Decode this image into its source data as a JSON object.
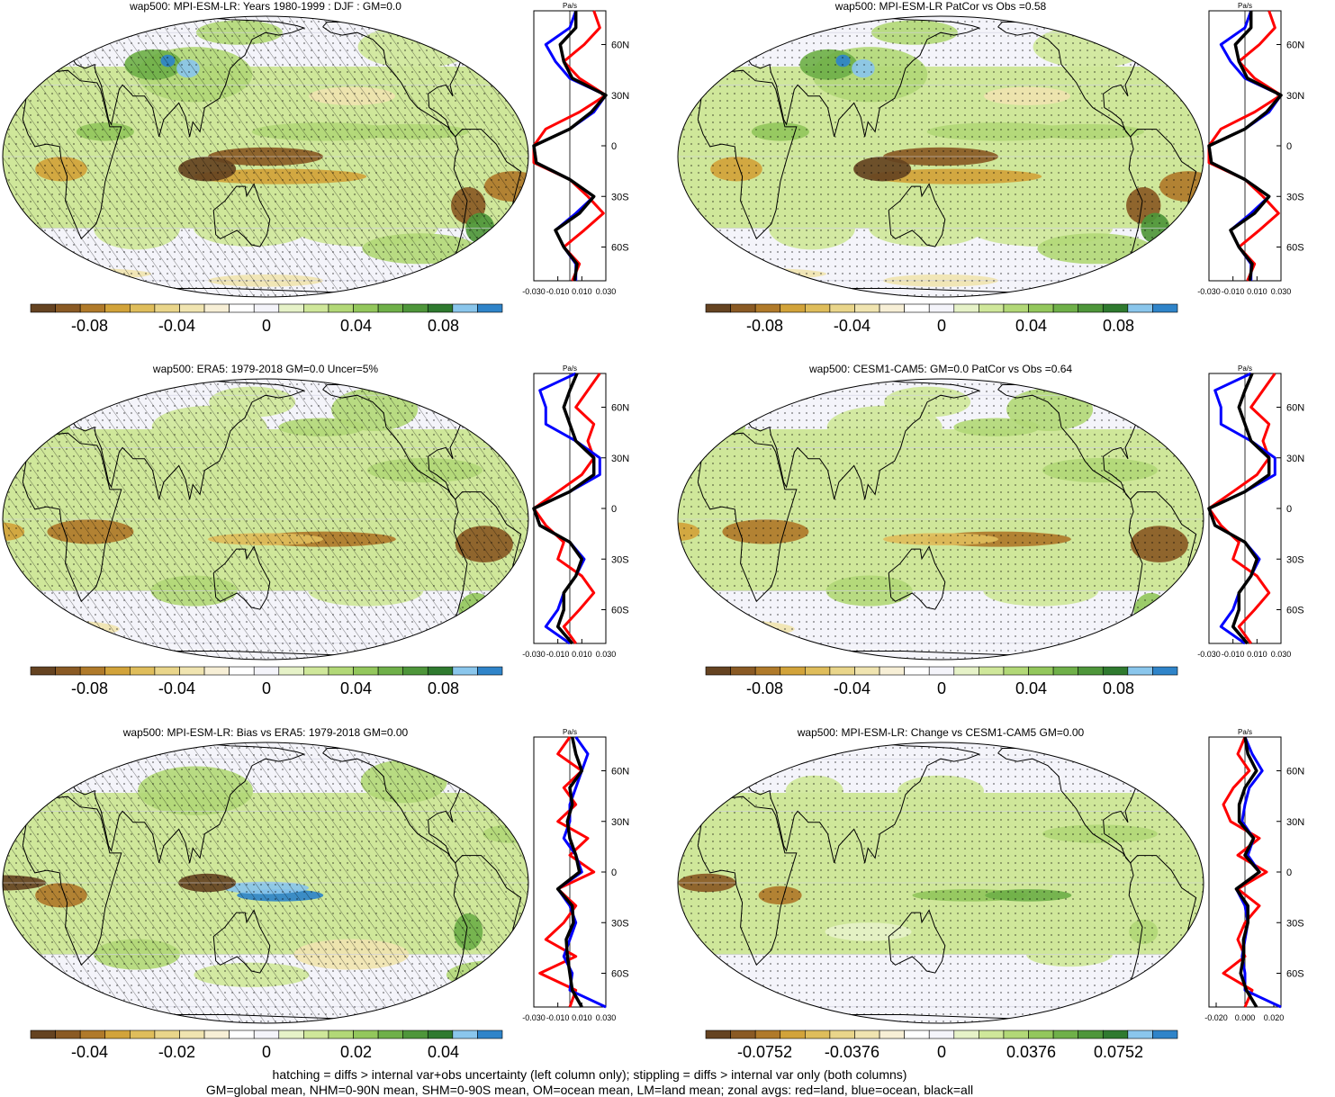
{
  "colors": {
    "scale": [
      "#654321",
      "#8a5a24",
      "#b07a2a",
      "#d2a33a",
      "#dfbd5b",
      "#e9d58a",
      "#f0e4b0",
      "#f7efd6",
      "#ffffff",
      "#f4f4fa",
      "#e6f2c8",
      "#cfe79a",
      "#b2d877",
      "#93c75c",
      "#6fb049",
      "#4e963a",
      "#2f7a2f",
      "#8ac6ec",
      "#2f84c9"
    ],
    "land": "#ff0000",
    "ocean": "#0000ff",
    "all": "#000000"
  },
  "panels": [
    {
      "id": "p1",
      "title": "wap500: MPI-ESM-LR: Years 1980-1999 : DJF : GM=0.0",
      "hatched": true,
      "colorbar_labels": [
        "-0.08",
        "-0.04",
        "0",
        "0.04",
        "0.08"
      ],
      "profile_unit": "Pa/s",
      "profile_xticks": [
        "-0.030",
        "-0.010",
        "0.010",
        "0.030"
      ],
      "profile_yticks": [
        "60N",
        "30N",
        "0",
        "30S",
        "60S"
      ]
    },
    {
      "id": "p2",
      "title": "wap500: MPI-ESM-LR PatCor vs Obs =0.58",
      "hatched": false,
      "colorbar_labels": [
        "-0.08",
        "-0.04",
        "0",
        "0.04",
        "0.08"
      ],
      "profile_unit": "Pa/s",
      "profile_xticks": [
        "-0.030",
        "-0.010",
        "0.010",
        "0.030"
      ],
      "profile_yticks": [
        "60N",
        "30N",
        "0",
        "30S",
        "60S"
      ]
    },
    {
      "id": "p3",
      "title": "wap500: ERA5: 1979-2018 GM=0.0 Uncer=5%",
      "hatched": true,
      "colorbar_labels": [
        "-0.08",
        "-0.04",
        "0",
        "0.04",
        "0.08"
      ],
      "profile_unit": "Pa/s",
      "profile_xticks": [
        "-0.030",
        "-0.010",
        "0.010",
        "0.030"
      ],
      "profile_yticks": [
        "60N",
        "30N",
        "0",
        "30S",
        "60S"
      ]
    },
    {
      "id": "p4",
      "title": "wap500: CESM1-CAM5: GM=0.0 PatCor vs Obs =0.64",
      "hatched": false,
      "colorbar_labels": [
        "-0.08",
        "-0.04",
        "0",
        "0.04",
        "0.08"
      ],
      "profile_unit": "Pa/s",
      "profile_xticks": [
        "-0.030",
        "-0.010",
        "0.010",
        "0.030"
      ],
      "profile_yticks": [
        "60N",
        "30N",
        "0",
        "30S",
        "60S"
      ]
    },
    {
      "id": "p5",
      "title": "wap500: MPI-ESM-LR: Bias vs ERA5: 1979-2018 GM=0.00",
      "hatched": true,
      "colorbar_labels": [
        "-0.04",
        "-0.02",
        "0",
        "0.02",
        "0.04"
      ],
      "profile_unit": "Pa/s",
      "profile_xticks": [
        "-0.030",
        "-0.010",
        "0.010",
        "0.030"
      ],
      "profile_yticks": [
        "60N",
        "30N",
        "0",
        "30S",
        "60S"
      ]
    },
    {
      "id": "p6",
      "title": "wap500: MPI-ESM-LR: Change vs CESM1-CAM5 GM=0.00",
      "hatched": false,
      "colorbar_labels": [
        "-0.0752",
        "-0.0376",
        "0",
        "0.0376",
        "0.0752"
      ],
      "profile_unit": "Pa/s",
      "profile_xticks": [
        "-0.020",
        "0.000",
        "0.020"
      ],
      "profile_yticks": [
        "60N",
        "30N",
        "0",
        "30S",
        "60S"
      ]
    }
  ],
  "footer": {
    "line1": "hatching = diffs > internal var+obs uncertainty (left column only); stippling = diffs > internal var only (both columns)",
    "line2": "GM=global mean, NHM=0-90N mean, SHM=0-90S mean, OM=ocean mean, LM=land mean; zonal avgs: red=land, blue=ocean, black=all"
  },
  "chart_data": [
    {
      "type": "heatmap",
      "title": "wap500: MPI-ESM-LR: Years 1980-1999 : DJF : GM=0.0",
      "colorbar_ticks": [
        -0.08,
        -0.04,
        0,
        0.04,
        0.08
      ],
      "zonal_profile": {
        "unit": "Pa/s",
        "xlim": [
          -0.03,
          0.03
        ],
        "latitudes": [
          80,
          70,
          60,
          50,
          40,
          30,
          20,
          10,
          0,
          -10,
          -20,
          -30,
          -40,
          -50,
          -60,
          -70,
          -80
        ],
        "series": [
          {
            "name": "land",
            "values": [
              0.02,
              0.025,
              0.012,
              -0.005,
              0.008,
              0.03,
              0.008,
              -0.02,
              -0.03,
              -0.03,
              0.0,
              0.015,
              0.028,
              0.012,
              -0.005,
              0.008,
              0.002
            ]
          },
          {
            "name": "ocean",
            "values": [
              0.005,
              0.0,
              -0.02,
              -0.012,
              0.0,
              0.03,
              0.02,
              0.0,
              -0.03,
              -0.028,
              0.0,
              0.02,
              0.005,
              -0.012,
              -0.005,
              0.005,
              0.005
            ]
          },
          {
            "name": "all",
            "values": [
              0.005,
              0.005,
              -0.008,
              -0.005,
              0.002,
              0.03,
              0.018,
              0.0,
              -0.03,
              -0.028,
              0.0,
              0.02,
              0.008,
              -0.012,
              -0.005,
              0.006,
              0.004
            ]
          }
        ]
      }
    },
    {
      "type": "heatmap",
      "title": "wap500: MPI-ESM-LR PatCor vs Obs =0.58",
      "colorbar_ticks": [
        -0.08,
        -0.04,
        0,
        0.04,
        0.08
      ],
      "zonal_profile": {
        "unit": "Pa/s",
        "xlim": [
          -0.03,
          0.03
        ],
        "latitudes": [
          80,
          70,
          60,
          50,
          40,
          30,
          20,
          10,
          0,
          -10,
          -20,
          -30,
          -40,
          -50,
          -60,
          -70,
          -80
        ],
        "series": [
          {
            "name": "land",
            "values": [
              0.02,
              0.025,
              0.012,
              -0.005,
              0.008,
              0.03,
              0.008,
              -0.02,
              -0.03,
              -0.03,
              0.0,
              0.015,
              0.028,
              0.012,
              -0.005,
              0.008,
              0.002
            ]
          },
          {
            "name": "ocean",
            "values": [
              0.005,
              0.0,
              -0.02,
              -0.012,
              0.0,
              0.03,
              0.02,
              0.0,
              -0.03,
              -0.028,
              0.0,
              0.02,
              0.005,
              -0.012,
              -0.005,
              0.005,
              0.005
            ]
          },
          {
            "name": "all",
            "values": [
              0.005,
              0.005,
              -0.008,
              -0.005,
              0.002,
              0.03,
              0.018,
              0.0,
              -0.03,
              -0.028,
              0.0,
              0.02,
              0.008,
              -0.012,
              -0.005,
              0.006,
              0.004
            ]
          }
        ]
      }
    },
    {
      "type": "heatmap",
      "title": "wap500: ERA5: 1979-2018 GM=0.0 Uncer=5%",
      "colorbar_ticks": [
        -0.08,
        -0.04,
        0,
        0.04,
        0.08
      ],
      "zonal_profile": {
        "unit": "Pa/s",
        "xlim": [
          -0.03,
          0.03
        ],
        "latitudes": [
          80,
          70,
          60,
          50,
          40,
          30,
          20,
          10,
          0,
          -10,
          -20,
          -30,
          -40,
          -50,
          -60,
          -70,
          -80
        ],
        "series": [
          {
            "name": "land",
            "values": [
              0.025,
              0.015,
              0.005,
              0.02,
              0.015,
              0.02,
              0.01,
              -0.01,
              -0.03,
              -0.02,
              -0.005,
              -0.01,
              0.01,
              0.02,
              0.008,
              -0.005,
              0.005
            ]
          },
          {
            "name": "ocean",
            "values": [
              0.005,
              -0.025,
              -0.02,
              -0.02,
              0.005,
              0.025,
              0.025,
              0.0,
              -0.03,
              -0.025,
              0.0,
              0.012,
              0.005,
              -0.005,
              -0.01,
              -0.02,
              0.0
            ]
          },
          {
            "name": "all",
            "values": [
              0.006,
              0.0,
              -0.005,
              0.0,
              0.005,
              0.02,
              0.02,
              0.0,
              -0.03,
              -0.025,
              0.0,
              0.01,
              0.005,
              -0.005,
              -0.005,
              -0.01,
              0.002
            ]
          }
        ]
      }
    },
    {
      "type": "heatmap",
      "title": "wap500: CESM1-CAM5: GM=0.0 PatCor vs Obs =0.64",
      "colorbar_ticks": [
        -0.08,
        -0.04,
        0,
        0.04,
        0.08
      ],
      "zonal_profile": {
        "unit": "Pa/s",
        "xlim": [
          -0.03,
          0.03
        ],
        "latitudes": [
          80,
          70,
          60,
          50,
          40,
          30,
          20,
          10,
          0,
          -10,
          -20,
          -30,
          -40,
          -50,
          -60,
          -70,
          -80
        ],
        "series": [
          {
            "name": "land",
            "values": [
              0.025,
              0.015,
              0.005,
              0.02,
              0.015,
              0.02,
              0.01,
              -0.01,
              -0.03,
              -0.02,
              -0.005,
              -0.01,
              0.01,
              0.02,
              0.008,
              -0.005,
              0.005
            ]
          },
          {
            "name": "ocean",
            "values": [
              0.005,
              -0.025,
              -0.02,
              -0.02,
              0.005,
              0.025,
              0.025,
              0.0,
              -0.03,
              -0.025,
              0.0,
              0.012,
              0.005,
              -0.005,
              -0.01,
              -0.02,
              0.0
            ]
          },
          {
            "name": "all",
            "values": [
              0.006,
              0.0,
              -0.005,
              0.0,
              0.005,
              0.02,
              0.02,
              0.0,
              -0.03,
              -0.025,
              0.0,
              0.01,
              0.005,
              -0.005,
              -0.005,
              -0.01,
              0.002
            ]
          }
        ]
      }
    },
    {
      "type": "heatmap",
      "title": "wap500: MPI-ESM-LR: Bias vs ERA5: 1979-2018 GM=0.00",
      "colorbar_ticks": [
        -0.04,
        -0.02,
        0,
        0.02,
        0.04
      ],
      "zonal_profile": {
        "unit": "Pa/s",
        "xlim": [
          -0.03,
          0.03
        ],
        "latitudes": [
          80,
          70,
          60,
          50,
          40,
          30,
          20,
          10,
          0,
          -10,
          -20,
          -30,
          -40,
          -50,
          -60,
          -70,
          -80
        ],
        "series": [
          {
            "name": "land",
            "values": [
              0.0,
              -0.01,
              0.01,
              -0.005,
              0.005,
              -0.01,
              0.015,
              0.0,
              0.02,
              -0.01,
              0.005,
              -0.005,
              -0.02,
              0.005,
              -0.025,
              0.005,
              0.0
            ]
          },
          {
            "name": "ocean",
            "values": [
              0.005,
              0.015,
              0.01,
              0.005,
              0.0,
              0.0,
              -0.005,
              0.005,
              0.01,
              -0.01,
              0.0,
              0.005,
              0.0,
              -0.005,
              0.002,
              0.0,
              0.03
            ]
          },
          {
            "name": "all",
            "values": [
              0.002,
              0.005,
              0.01,
              0.0,
              0.002,
              -0.002,
              0.0,
              0.005,
              0.008,
              -0.01,
              0.002,
              0.003,
              -0.003,
              -0.002,
              0.0,
              0.002,
              0.01
            ]
          }
        ]
      }
    },
    {
      "type": "heatmap",
      "title": "wap500: MPI-ESM-LR: Change vs CESM1-CAM5 GM=0.00",
      "colorbar_ticks": [
        -0.0752,
        -0.0376,
        0,
        0.0376,
        0.0752
      ],
      "zonal_profile": {
        "unit": "Pa/s",
        "xlim": [
          -0.025,
          0.025
        ],
        "latitudes": [
          80,
          70,
          60,
          50,
          40,
          30,
          20,
          10,
          0,
          -10,
          -20,
          -30,
          -40,
          -50,
          -60,
          -70,
          -80
        ],
        "series": [
          {
            "name": "land",
            "values": [
              0.0,
              -0.005,
              0.003,
              -0.008,
              -0.015,
              -0.01,
              0.01,
              -0.005,
              0.015,
              -0.005,
              0.01,
              0.0,
              -0.005,
              0.0,
              -0.015,
              0.005,
              0.0
            ]
          },
          {
            "name": "ocean",
            "values": [
              0.0,
              0.005,
              0.012,
              0.003,
              0.0,
              -0.002,
              0.006,
              0.002,
              0.01,
              -0.006,
              0.0,
              0.002,
              0.0,
              -0.002,
              0.0,
              0.0,
              0.025
            ]
          },
          {
            "name": "all",
            "values": [
              0.0,
              0.002,
              0.008,
              0.0,
              -0.004,
              -0.004,
              0.006,
              0.0,
              0.01,
              -0.006,
              0.002,
              0.002,
              -0.001,
              -0.001,
              -0.003,
              0.001,
              0.008
            ]
          }
        ]
      }
    }
  ]
}
